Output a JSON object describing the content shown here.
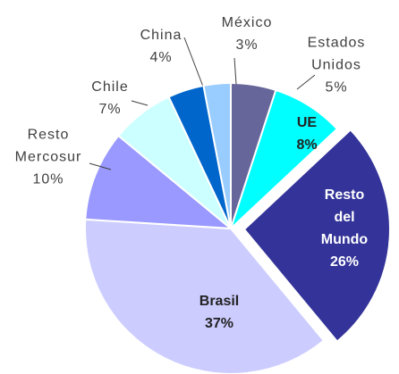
{
  "chart_data": {
    "type": "pie",
    "categories": [
      "Estados\nUnidos",
      "UE",
      "Resto del\nMundo",
      "Brasil",
      "Resto\nMercosur",
      "Chile",
      "China",
      "México"
    ],
    "values": [
      5,
      8,
      26,
      37,
      10,
      7,
      4,
      3
    ],
    "value_labels": [
      "5%",
      "8%",
      "26%",
      "37%",
      "10%",
      "7%",
      "4%",
      "3%"
    ],
    "colors": [
      "#66669a",
      "#00ffff",
      "#333399",
      "#ccccff",
      "#9999ff",
      "#ccffff",
      "#0066cc",
      "#99ccff"
    ],
    "exploded": [
      false,
      false,
      true,
      false,
      false,
      false,
      false,
      false
    ]
  }
}
